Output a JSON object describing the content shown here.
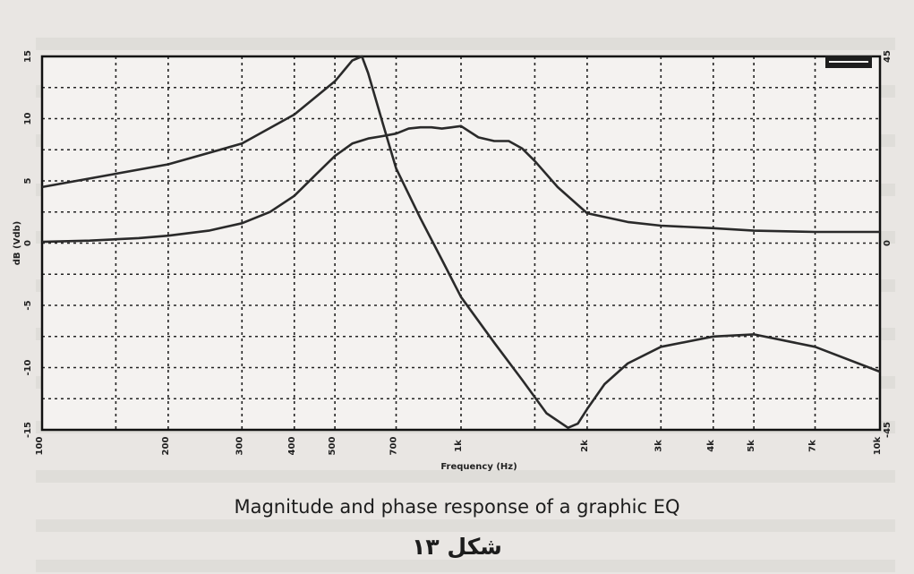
{
  "chart_data": {
    "type": "line",
    "xlabel": "Frequency (Hz)",
    "ylabel": "dB (Vdb)",
    "x_scale": "log",
    "xlim": [
      100,
      10000
    ],
    "ylim": [
      -15,
      15
    ],
    "y2lim": [
      -45,
      45
    ],
    "x_tick_labels": [
      "100",
      "200",
      "300",
      "400",
      "500",
      "700",
      "1k",
      "2k",
      "3k",
      "4k",
      "5k",
      "7k",
      "10k"
    ],
    "y_tick_labels": [
      "-15",
      "-10",
      "-5",
      "0",
      "5",
      "10",
      "15"
    ],
    "y2_tick_labels": [
      "-45",
      "0",
      "45"
    ],
    "grid": true,
    "series": [
      {
        "line": "magnitude",
        "axis": "left",
        "x": [
          100,
          130,
          170,
          200,
          250,
          300,
          350,
          400,
          450,
          500,
          550,
          600,
          650,
          700,
          750,
          800,
          850,
          900,
          950,
          1000,
          1100,
          1200,
          1300,
          1400,
          1500,
          1700,
          2000,
          2500,
          3000,
          4000,
          5000,
          7000,
          10000
        ],
        "y": [
          0.1,
          0.2,
          0.4,
          0.6,
          1.0,
          1.6,
          2.5,
          3.8,
          5.5,
          7.0,
          8.0,
          8.4,
          8.6,
          8.8,
          9.2,
          9.3,
          9.3,
          9.2,
          9.3,
          9.4,
          8.5,
          8.2,
          8.2,
          7.6,
          6.6,
          4.5,
          2.4,
          1.7,
          1.4,
          1.2,
          1.0,
          0.9,
          0.9
        ]
      },
      {
        "line": "phase",
        "axis": "right",
        "x": [
          100,
          200,
          300,
          400,
          500,
          550,
          580,
          600,
          650,
          700,
          800,
          900,
          1000,
          1200,
          1400,
          1600,
          1800,
          1900,
          2000,
          2200,
          2500,
          3000,
          4000,
          5000,
          7000,
          10000
        ],
        "y": [
          13.5,
          19,
          24,
          31,
          39,
          44,
          45,
          41,
          29,
          18,
          6,
          -4,
          -13,
          -24,
          -33,
          -41,
          -44.5,
          -43.5,
          -40,
          -34,
          -29,
          -25,
          -22.5,
          -22,
          -25,
          -31
        ]
      }
    ]
  },
  "captions": {
    "english": "Magnitude and phase response of a graphic EQ",
    "persian": "شکل ۱۳"
  }
}
